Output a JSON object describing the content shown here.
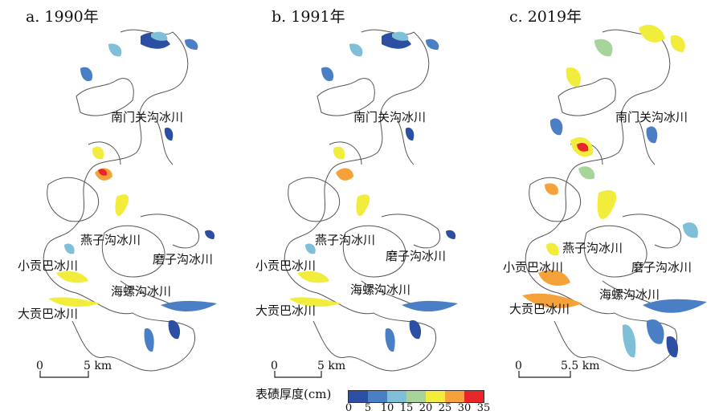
{
  "panels": [
    {
      "title": "a. 1990年",
      "labels": {
        "nanmenguan": "南门关沟冰川",
        "yanzigou": "燕子沟冰川",
        "xiaogongba": "小贡巴冰川",
        "mozigou": "磨子沟冰川",
        "hailuogou": "海螺沟冰川",
        "dagongba": "大贡巴冰川"
      },
      "scale": {
        "zero": "0",
        "end": "5 km"
      }
    },
    {
      "title": "b. 1991年",
      "labels": {
        "nanmenguan": "南门关沟冰川",
        "yanzigou": "燕子沟冰川",
        "xiaogongba": "小贡巴冰川",
        "mozigou": "磨子沟冰川",
        "hailuogou": "海螺沟冰川",
        "dagongba": "大贡巴冰川"
      },
      "scale": {
        "zero": "0",
        "end": "5 km"
      }
    },
    {
      "title": "c. 2019年",
      "labels": {
        "nanmenguan": "南门关沟冰川",
        "yanzigou": "燕子沟冰川",
        "xiaogongba": "小贡巴冰川",
        "mozigou": "磨子沟冰川",
        "hailuogou": "海螺沟冰川",
        "dagongba": "大贡巴冰川"
      },
      "scale": {
        "zero": "0",
        "end": "5.5 km"
      }
    }
  ],
  "legend": {
    "title": "表碛厚度(cm)",
    "ticks": [
      "0",
      "5",
      "10",
      "15",
      "20",
      "25",
      "30",
      "35"
    ],
    "colors": [
      "#2c4fa3",
      "#4a7fc6",
      "#7fc0d8",
      "#a7d49b",
      "#f2ec3c",
      "#f5a23a",
      "#e8262a"
    ]
  }
}
